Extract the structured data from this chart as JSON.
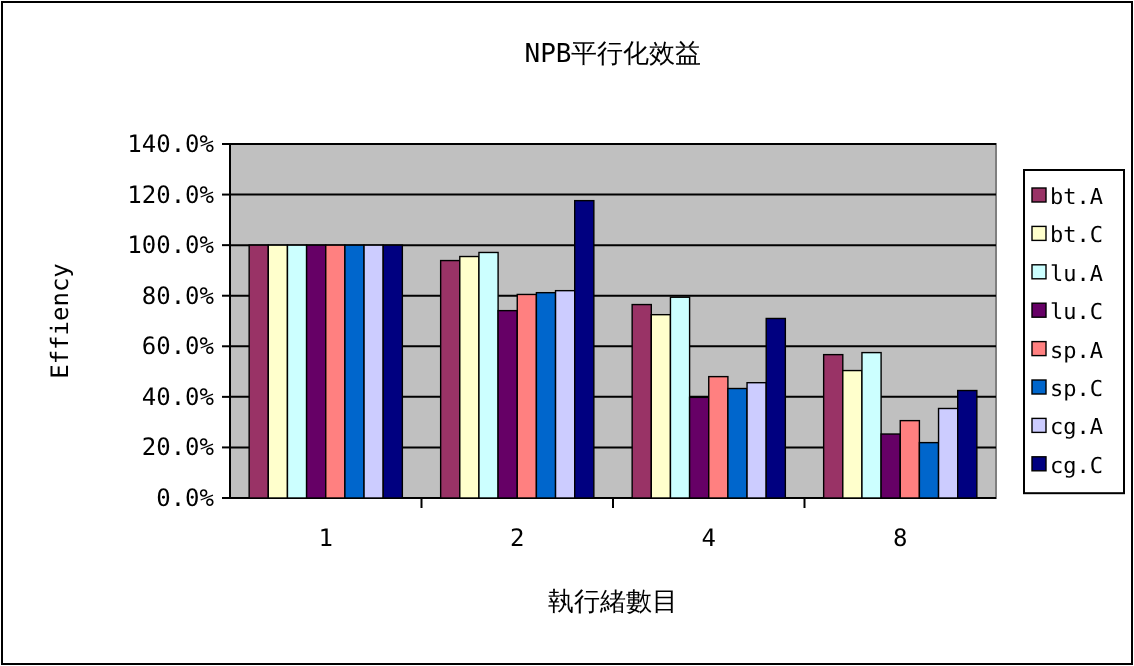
{
  "chart_data": {
    "type": "bar",
    "title": "NPB平行化效益",
    "xlabel": "執行緒數目",
    "ylabel": "Effiency",
    "categories": [
      "1",
      "2",
      "4",
      "8"
    ],
    "series": [
      {
        "name": "bt.A",
        "color": "#993366",
        "values": [
          100,
          93.9,
          76.5,
          56.7
        ]
      },
      {
        "name": "bt.C",
        "color": "#ffffcc",
        "values": [
          100,
          95.5,
          72.5,
          50.4
        ]
      },
      {
        "name": "lu.A",
        "color": "#ccffff",
        "values": [
          100,
          97.1,
          79.4,
          57.5
        ]
      },
      {
        "name": "lu.C",
        "color": "#660066",
        "values": [
          100,
          74.1,
          39.8,
          25.3
        ]
      },
      {
        "name": "sp.A",
        "color": "#ff8080",
        "values": [
          100,
          80.5,
          48,
          30.6
        ]
      },
      {
        "name": "sp.C",
        "color": "#0066cc",
        "values": [
          100,
          81.2,
          43.3,
          21.9
        ]
      },
      {
        "name": "cg.A",
        "color": "#ccccff",
        "values": [
          100,
          82,
          45.6,
          35.4
        ]
      },
      {
        "name": "cg.C",
        "color": "#000080",
        "values": [
          100,
          117.6,
          71,
          42.5
        ]
      }
    ],
    "ylim": [
      0,
      140
    ],
    "yticks": [
      {
        "value": 0,
        "label": "0.0%"
      },
      {
        "value": 20,
        "label": "20.0%"
      },
      {
        "value": 40,
        "label": "40.0%"
      },
      {
        "value": 60,
        "label": "60.0%"
      },
      {
        "value": 80,
        "label": "80.0%"
      },
      {
        "value": 100,
        "label": "100.0%"
      },
      {
        "value": 120,
        "label": "120.0%"
      },
      {
        "value": 140,
        "label": "140.0%"
      }
    ],
    "grid": "y",
    "legend": "right"
  }
}
